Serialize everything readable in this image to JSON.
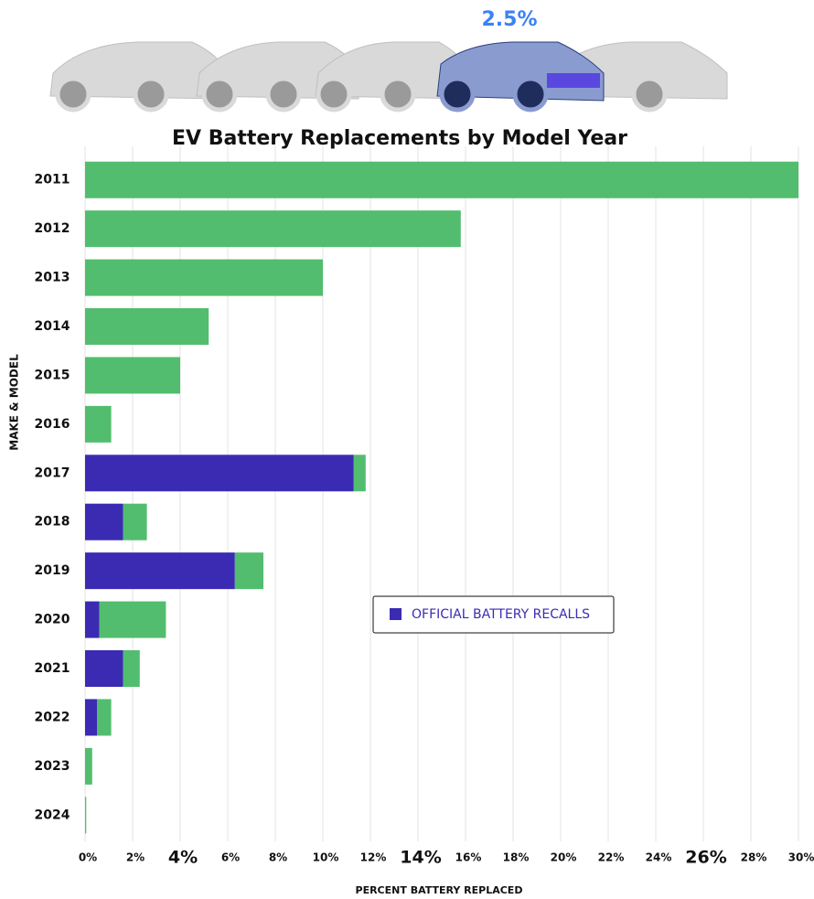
{
  "header_label": "2.5%",
  "chart_data": {
    "type": "stacked-bar-horizontal",
    "title": "EV Battery Replacements by Model Year",
    "xlabel": "PERCENT BATTERY REPLACED",
    "ylabel": "MAKE & MODEL",
    "categories": [
      "2011",
      "2012",
      "2013",
      "2014",
      "2015",
      "2016",
      "2017",
      "2018",
      "2019",
      "2020",
      "2021",
      "2022",
      "2023",
      "2024"
    ],
    "series": [
      {
        "name": "OFFICIAL BATTERY RECALLS",
        "color": "#3b2bb3",
        "values": [
          0,
          0,
          0,
          0,
          0,
          0,
          11.3,
          1.6,
          6.3,
          0.6,
          1.6,
          0.5,
          0,
          0
        ]
      },
      {
        "color": "#52bd6e",
        "values": [
          30,
          15.8,
          10,
          5.2,
          4,
          1.1,
          0.5,
          1.0,
          1.2,
          2.8,
          0.7,
          0.6,
          0.3,
          0.05
        ]
      }
    ],
    "xlim": [
      0,
      30
    ],
    "xticks": [
      {
        "value": 0,
        "label": "0%"
      },
      {
        "value": 2,
        "label": "2%"
      },
      {
        "value": 4,
        "label": "4%"
      },
      {
        "value": 6,
        "label": "6%"
      },
      {
        "value": 8,
        "label": "8%"
      },
      {
        "value": 10,
        "label": "10%"
      },
      {
        "value": 12,
        "label": "12%"
      },
      {
        "value": 14,
        "label": "14%"
      },
      {
        "value": 16,
        "label": "16%"
      },
      {
        "value": 18,
        "label": "18%"
      },
      {
        "value": 20,
        "label": "20%"
      },
      {
        "value": 22,
        "label": "22%"
      },
      {
        "value": 24,
        "label": "24%"
      },
      {
        "value": 26,
        "label": "26%"
      },
      {
        "value": 28,
        "label": "28%"
      },
      {
        "value": 30,
        "label": "30%"
      }
    ],
    "grid": true
  }
}
